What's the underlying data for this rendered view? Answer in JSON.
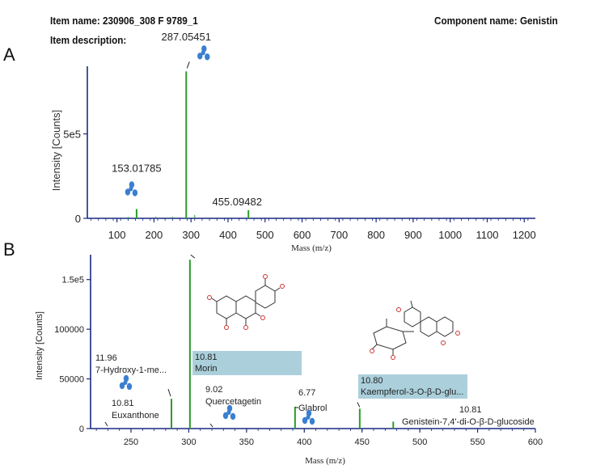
{
  "header": {
    "item_name": "Item name: 230906_308 F 9789_1",
    "item_description": "Item description:",
    "component_name": "Component name: Genistin"
  },
  "panel_labels": {
    "a": "A",
    "b": "B"
  },
  "colors": {
    "peak": "#2a9d2a",
    "axis": "#1a2a80",
    "label_box": "#abd0dc",
    "drop_icon": "#3a7fd0"
  },
  "chart_data": [
    {
      "type": "bar",
      "panel": "A",
      "xlabel": "Mass (m/z)",
      "ylabel": "Intensity [Counts]",
      "xlim": [
        20,
        1230
      ],
      "ylim": [
        0,
        900000
      ],
      "xticks": [
        100,
        200,
        300,
        400,
        500,
        600,
        700,
        800,
        900,
        1000,
        1100,
        1200
      ],
      "yticks": [
        {
          "value": 0,
          "label": "0"
        },
        {
          "value": 500000,
          "label": "5e5"
        }
      ],
      "peaks": [
        {
          "x": 153.01785,
          "y": 55000,
          "label": "153.01785",
          "marked": true
        },
        {
          "x": 287.05451,
          "y": 870000,
          "label": "287.05451",
          "marked": true
        },
        {
          "x": 455.09482,
          "y": 48000,
          "label": "455.09482",
          "marked": false
        }
      ],
      "minor_peaks": [
        {
          "x": 130,
          "y": 8000
        },
        {
          "x": 205,
          "y": 10000
        },
        {
          "x": 250,
          "y": 9000
        },
        {
          "x": 310,
          "y": 20000
        },
        {
          "x": 340,
          "y": 6000
        },
        {
          "x": 400,
          "y": 5000
        }
      ]
    },
    {
      "type": "bar",
      "panel": "B",
      "xlabel": "Mass (m/z)",
      "ylabel": "Intensity [Counts]",
      "xlim": [
        215,
        600
      ],
      "ylim": [
        0,
        175000
      ],
      "xticks": [
        250,
        300,
        350,
        400,
        450,
        500,
        550,
        600
      ],
      "yticks": [
        {
          "value": 0,
          "label": "0"
        },
        {
          "value": 50000,
          "label": "50000"
        },
        {
          "value": 100000,
          "label": "100000"
        },
        {
          "value": 150000,
          "label": "1.5e5"
        }
      ],
      "peaks": [
        {
          "x": 285.0,
          "y": 30000
        },
        {
          "x": 301.0,
          "y": 170000
        },
        {
          "x": 392.0,
          "y": 22000
        },
        {
          "x": 448.0,
          "y": 20000
        },
        {
          "x": 477.0,
          "y": 7000
        }
      ],
      "annotations": [
        {
          "line1": "11.96",
          "line2": "7-Hydroxy-1-me...",
          "highlight": false
        },
        {
          "line1": "10.81",
          "line2": "Euxanthone",
          "highlight": false
        },
        {
          "line1": "10.81",
          "line2": "Morin",
          "highlight": true
        },
        {
          "line1": "9.02",
          "line2": "Quercetagetin",
          "highlight": false
        },
        {
          "line1": "6.77",
          "line2": "Glabrol",
          "highlight": false
        },
        {
          "line1": "10.80",
          "line2": "Kaempferol-3-O-β-D-glu...",
          "highlight": true
        },
        {
          "line1": "10.81",
          "line2": "Genistein-7,4'-di-O-β-D-glucoside",
          "highlight": false
        }
      ]
    }
  ]
}
